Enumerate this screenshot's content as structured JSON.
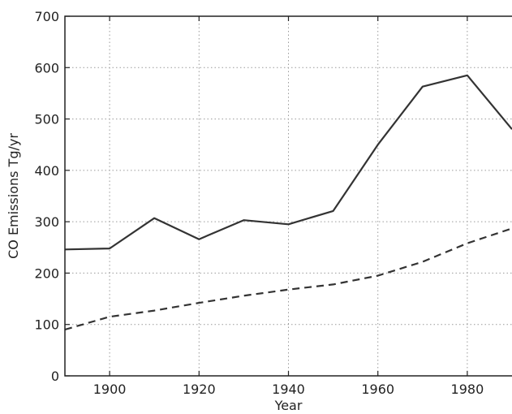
{
  "chart_data": {
    "type": "line",
    "title": "",
    "xlabel": "Year",
    "ylabel": "CO Emissions Tg/yr",
    "xlim": [
      1890,
      1990
    ],
    "ylim": [
      0,
      700
    ],
    "xticks": [
      1900,
      1920,
      1940,
      1960,
      1980
    ],
    "yticks": [
      0,
      100,
      200,
      300,
      400,
      500,
      600,
      700
    ],
    "grid": true,
    "legend": "none",
    "series": [
      {
        "style": "solid",
        "color": "#333333",
        "x": [
          1890,
          1900,
          1910,
          1920,
          1930,
          1940,
          1950,
          1960,
          1970,
          1980,
          1990
        ],
        "y": [
          246,
          248,
          307,
          266,
          303,
          295,
          321,
          450,
          563,
          585,
          480
        ]
      },
      {
        "style": "dashed",
        "color": "#333333",
        "x": [
          1890,
          1900,
          1910,
          1920,
          1930,
          1940,
          1950,
          1960,
          1970,
          1980,
          1990
        ],
        "y": [
          90,
          115,
          127,
          142,
          156,
          168,
          178,
          195,
          222,
          258,
          287
        ]
      }
    ]
  }
}
